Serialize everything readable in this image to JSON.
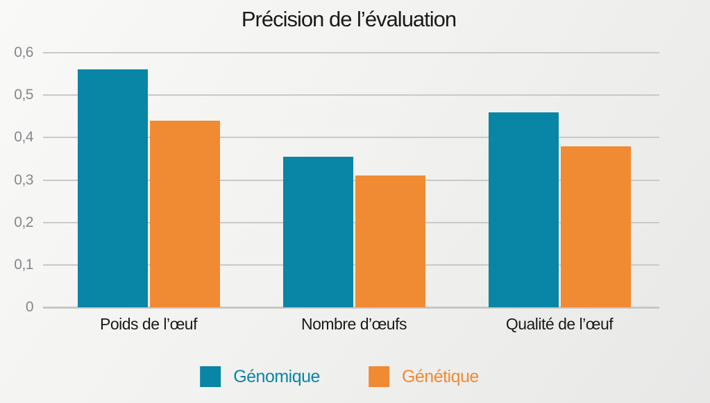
{
  "title": "Précision de l’évaluation",
  "colors": {
    "genomique": "#0985a6",
    "genetique": "#f08a33",
    "gridline": "#c9c9c9",
    "y_axis_label_text": "#85878c",
    "x_axis_label_text": "#1a1a1a",
    "title_text": "#1a1a1a"
  },
  "chart_data": {
    "type": "bar",
    "title": "Précision de l’évaluation",
    "categories": [
      "Poids de l’œuf",
      "Nombre d’œufs",
      "Qualité de l’œuf"
    ],
    "series": [
      {
        "name": "Génomique",
        "color": "#0985a6",
        "values": [
          0.56,
          0.355,
          0.46
        ]
      },
      {
        "name": "Génétique",
        "color": "#f08a33",
        "values": [
          0.44,
          0.31,
          0.38
        ]
      }
    ],
    "xlabel": "",
    "ylabel": "",
    "ylim": [
      0,
      0.6
    ],
    "ytick_values": [
      0,
      0.1,
      0.2,
      0.3,
      0.4,
      0.5,
      0.6
    ],
    "ytick_labels": [
      "0",
      "0,1",
      "0,2",
      "0,3",
      "0,4",
      "0,5",
      "0,6"
    ],
    "decimal_separator": ",",
    "grid": true,
    "legend_position": "bottom"
  },
  "legend": {
    "items": [
      {
        "label": "Génomique",
        "color": "#0985a6"
      },
      {
        "label": "Génétique",
        "color": "#f08a33"
      }
    ]
  }
}
